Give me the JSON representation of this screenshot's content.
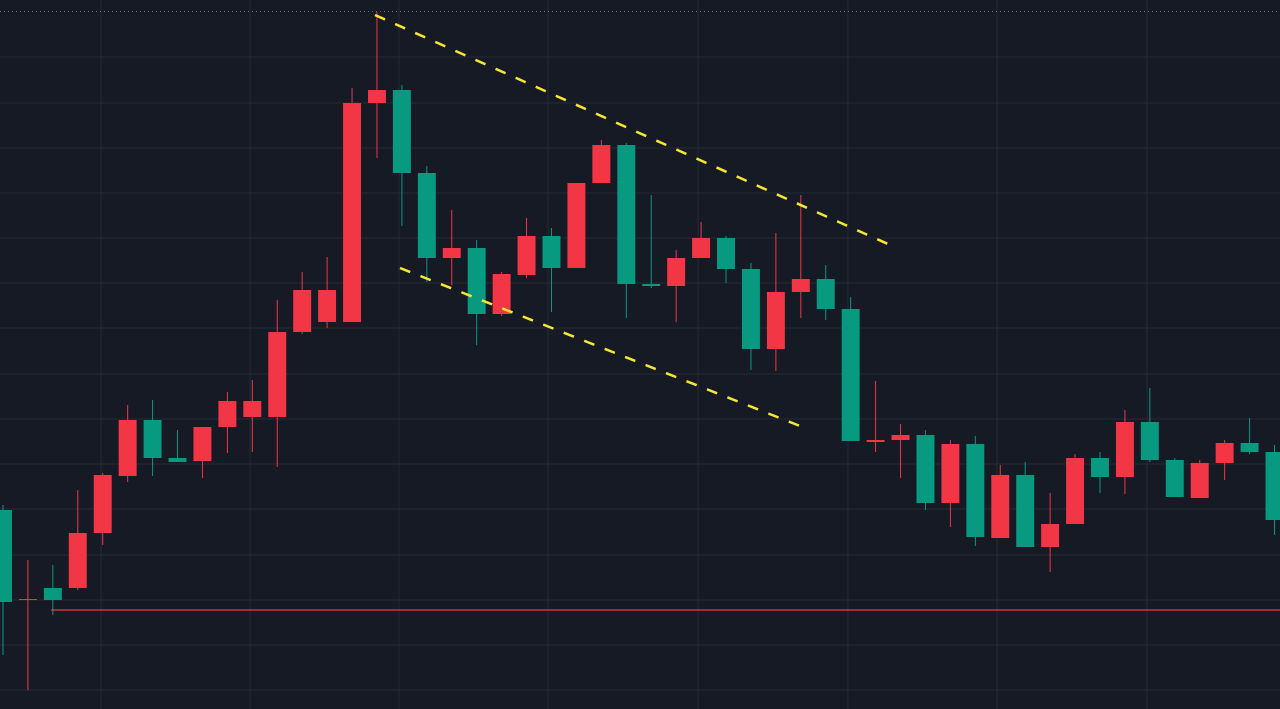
{
  "chart_data": {
    "type": "candlestick",
    "x": [
      0,
      1,
      2,
      3,
      4,
      5,
      6,
      7,
      8,
      9,
      10,
      11,
      12,
      13,
      14,
      15,
      16,
      17,
      18,
      19,
      20,
      21,
      22,
      23,
      24,
      25,
      26,
      27,
      28,
      29,
      30,
      31,
      32,
      33,
      34,
      35,
      36,
      37,
      38,
      39,
      40,
      41,
      42,
      43,
      44,
      45,
      46,
      47,
      48,
      49,
      50,
      51
    ],
    "open": [
      199,
      109,
      121,
      121,
      176,
      233,
      289,
      251,
      248,
      282,
      292,
      292,
      377,
      387,
      387,
      606,
      619,
      536,
      451,
      461,
      395,
      434,
      473,
      441,
      526,
      564,
      425,
      423,
      451,
      471,
      440,
      360,
      417,
      430,
      400,
      267,
      269,
      274,
      206,
      265,
      171,
      234,
      162,
      185,
      251,
      232,
      287,
      249,
      211,
      246,
      266,
      257
    ],
    "high": [
      204,
      149,
      144,
      219,
      236,
      304,
      309,
      279,
      282,
      317,
      329,
      409,
      437,
      452,
      621,
      697,
      624,
      543,
      499,
      469,
      437,
      491,
      481,
      526,
      569,
      566,
      514,
      459,
      487,
      473,
      446,
      476,
      514,
      444,
      412,
      328,
      285,
      279,
      269,
      273,
      244,
      247,
      216,
      255,
      257,
      299,
      321,
      251,
      249,
      269,
      291,
      264
    ],
    "low": [
      54,
      19,
      94,
      119,
      164,
      227,
      233,
      247,
      231,
      256,
      257,
      242,
      375,
      381,
      387,
      551,
      483,
      427,
      424,
      364,
      393,
      431,
      397,
      441,
      526,
      391,
      421,
      387,
      451,
      426,
      339,
      338,
      391,
      389,
      268,
      257,
      231,
      199,
      182,
      163,
      171,
      162,
      137,
      185,
      216,
      215,
      247,
      212,
      211,
      229,
      255,
      174
    ],
    "close": [
      107,
      110,
      109,
      176,
      234,
      289,
      251,
      247,
      282,
      308,
      308,
      377,
      419,
      419,
      606,
      619,
      536,
      451,
      461,
      395,
      435,
      473,
      441,
      526,
      564,
      425,
      423,
      451,
      471,
      440,
      360,
      417,
      430,
      400,
      268,
      269,
      274,
      206,
      265,
      172,
      234,
      162,
      185,
      251,
      232,
      287,
      249,
      212,
      246,
      266,
      257,
      189
    ],
    "up_color": "#f23645",
    "down_color": "#089981",
    "xlim": [
      -0.12,
      51.22
    ],
    "xticks": [
      3.93,
      9.91,
      15.88,
      21.86,
      27.88,
      33.89,
      39.87,
      45.89
    ],
    "ylim": [
      0,
      709
    ],
    "yticks": [
      19,
      64,
      109,
      154,
      200,
      245,
      290,
      335,
      381,
      426,
      471,
      516,
      561,
      606,
      652
    ],
    "grid": true
  }
}
